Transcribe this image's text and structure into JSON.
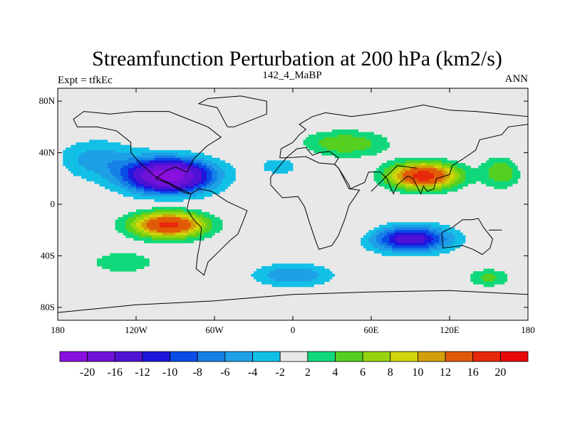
{
  "title": "Streamfunction Perturbation at 200 hPa (km2/s)",
  "left_label": "Expt = tfkEc",
  "center_label": "142_4_MaBP",
  "right_label": "ANN",
  "lat_ticks": [
    "80N",
    "40N",
    "0",
    "40S",
    "80S"
  ],
  "lon_ticks": [
    "180",
    "120W",
    "60W",
    "0",
    "60E",
    "120E",
    "180"
  ],
  "colorbar": {
    "labels": [
      "-20",
      "-16",
      "-12",
      "-10",
      "-8",
      "-6",
      "-4",
      "-2",
      "2",
      "4",
      "6",
      "8",
      "10",
      "12",
      "16",
      "20"
    ],
    "colors": [
      "#8a10e0",
      "#6f12d8",
      "#5012d4",
      "#1f16dd",
      "#0a4ce6",
      "#1680e6",
      "#1ea0e6",
      "#12c0e6",
      "#e8e8e8",
      "#10d87a",
      "#55d020",
      "#96d410",
      "#d2d40a",
      "#d2a008",
      "#e05a08",
      "#e8280a",
      "#e80a0a"
    ]
  },
  "chart_data": {
    "type": "heatmap",
    "title": "Streamfunction Perturbation at 200 hPa (km2/s)",
    "xlabel": "",
    "ylabel": "",
    "xlim": [
      -180,
      180
    ],
    "ylim": [
      -90,
      90
    ],
    "contour_levels": [
      -20,
      -16,
      -12,
      -10,
      -8,
      -6,
      -4,
      -2,
      2,
      4,
      6,
      8,
      10,
      12,
      16,
      20
    ],
    "features": [
      {
        "kind": "minimum",
        "lon": -95,
        "lat": 22,
        "value": -20
      },
      {
        "kind": "maximum",
        "lon": -95,
        "lat": -16,
        "value": 16
      },
      {
        "kind": "maximum",
        "lon": 100,
        "lat": 22,
        "value": 16
      },
      {
        "kind": "minimum",
        "lon": 90,
        "lat": -27,
        "value": -12
      },
      {
        "kind": "maximum",
        "lon": 40,
        "lat": 48,
        "value": 6
      },
      {
        "kind": "maximum",
        "lon": 150,
        "lat": -57,
        "value": 4
      },
      {
        "kind": "minimum",
        "lon": 0,
        "lat": -55,
        "value": -6
      }
    ]
  }
}
